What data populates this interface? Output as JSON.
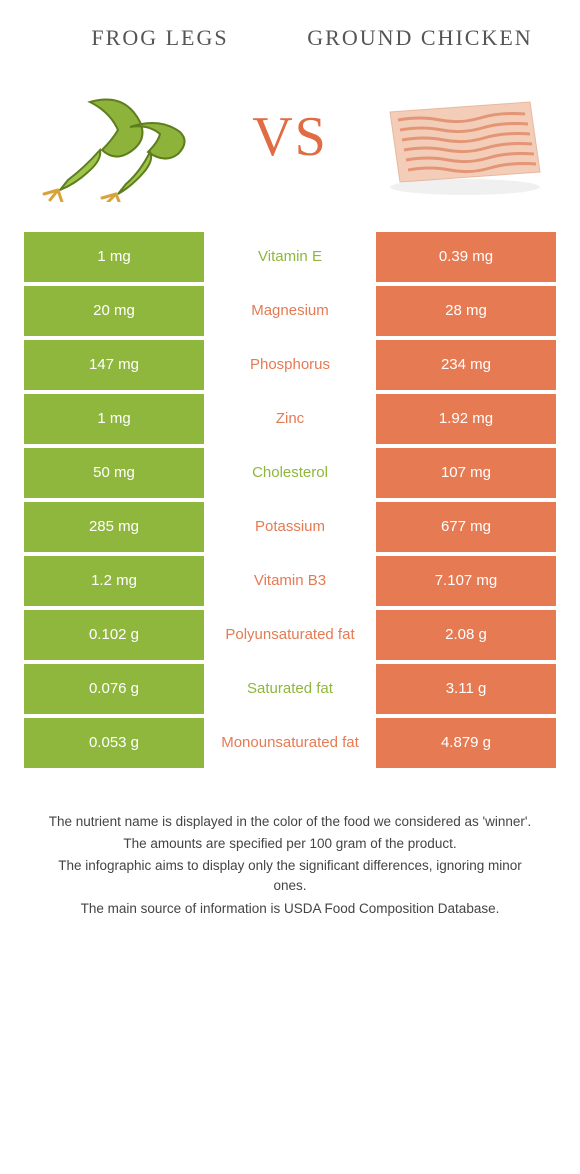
{
  "colors": {
    "left": "#8fb73e",
    "right": "#e67a53",
    "vs": "#e16b43"
  },
  "food_left": {
    "title": "Frog legs"
  },
  "food_right": {
    "title": "Ground Chicken"
  },
  "vs_label": "VS",
  "rows": [
    {
      "left": "1 mg",
      "mid": "Vitamin E",
      "right": "0.39 mg",
      "winner": "left"
    },
    {
      "left": "20 mg",
      "mid": "Magnesium",
      "right": "28 mg",
      "winner": "right"
    },
    {
      "left": "147 mg",
      "mid": "Phosphorus",
      "right": "234 mg",
      "winner": "right"
    },
    {
      "left": "1 mg",
      "mid": "Zinc",
      "right": "1.92 mg",
      "winner": "right"
    },
    {
      "left": "50 mg",
      "mid": "Cholesterol",
      "right": "107 mg",
      "winner": "left"
    },
    {
      "left": "285 mg",
      "mid": "Potassium",
      "right": "677 mg",
      "winner": "right"
    },
    {
      "left": "1.2 mg",
      "mid": "Vitamin B3",
      "right": "7.107 mg",
      "winner": "right"
    },
    {
      "left": "0.102 g",
      "mid": "Polyunsaturated fat",
      "right": "2.08 g",
      "winner": "right"
    },
    {
      "left": "0.076 g",
      "mid": "Saturated fat",
      "right": "3.11 g",
      "winner": "left"
    },
    {
      "left": "0.053 g",
      "mid": "Monounsaturated fat",
      "right": "4.879 g",
      "winner": "right"
    }
  ],
  "footnotes": [
    "The nutrient name is displayed in the color of the food we considered as 'winner'.",
    "The amounts are specified per 100 gram of the product.",
    "The infographic aims to display only the significant differences, ignoring minor ones.",
    "The main source of information is USDA Food Composition Database."
  ]
}
